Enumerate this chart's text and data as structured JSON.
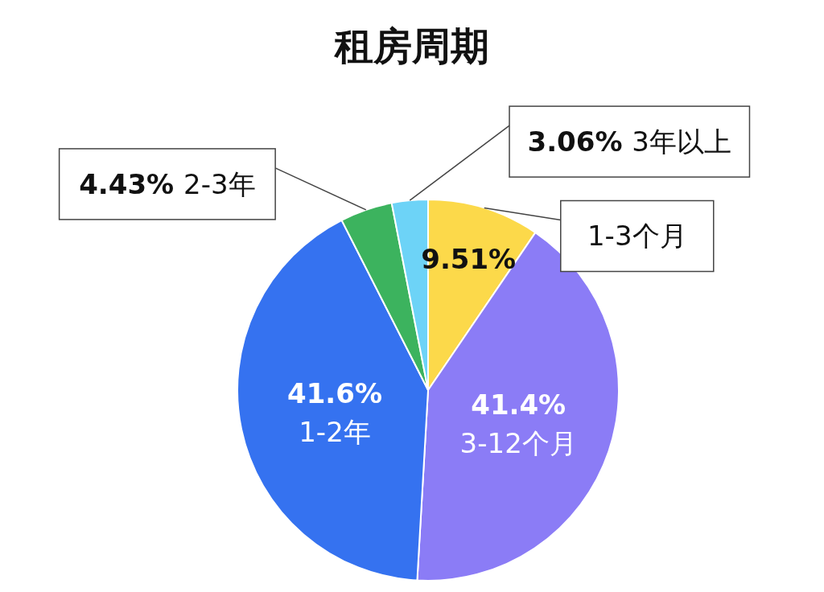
{
  "chart_data": {
    "type": "pie",
    "title": "租房周期",
    "categories": [
      "1-3个月",
      "3-12个月",
      "1-2年",
      "2-3年",
      "3年以上"
    ],
    "values": [
      9.51,
      41.4,
      41.6,
      4.43,
      3.06
    ],
    "colors": [
      "#fcd94a",
      "#8b7cf6",
      "#3572f0",
      "#3cb35e",
      "#6dd3f7"
    ],
    "value_labels": [
      "9.51%",
      "41.4%",
      "41.6%",
      "4.43%",
      "3.06%"
    ]
  }
}
